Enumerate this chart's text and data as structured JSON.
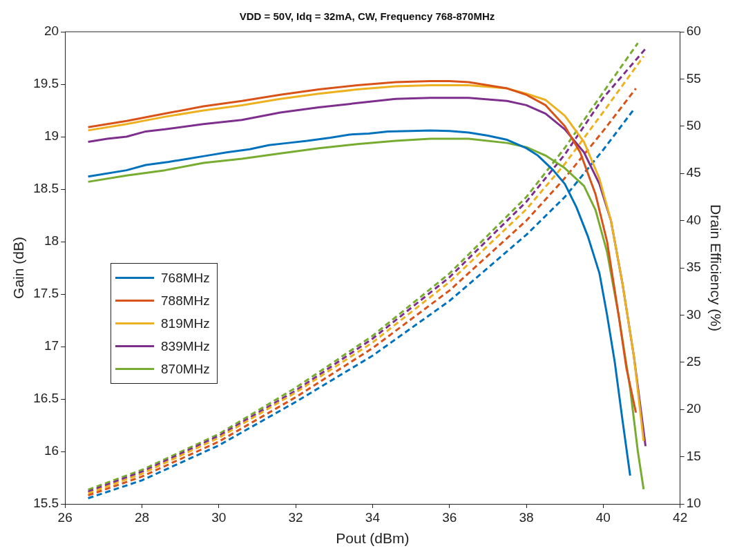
{
  "chart_data": {
    "type": "line",
    "title": "VDD = 50V, Idq = 32mA, CW, Frequency 768-870MHz",
    "xlabel": "Pout (dBm)",
    "ylabel": "Gain (dB)",
    "y2label": "Drain Efficiency (%)",
    "xlim": [
      26,
      42
    ],
    "xticks": [
      26,
      28,
      30,
      32,
      34,
      36,
      38,
      40,
      42
    ],
    "ylim": [
      15.5,
      20
    ],
    "yticks": [
      15.5,
      16,
      16.5,
      17,
      17.5,
      18,
      18.5,
      19,
      19.5,
      20
    ],
    "y2lim": [
      10,
      60
    ],
    "y2ticks": [
      10,
      15,
      20,
      25,
      30,
      35,
      40,
      45,
      50,
      55,
      60
    ],
    "legend": "left",
    "marker": "none",
    "series": [
      {
        "name": "768MHz",
        "color": "#0072bd",
        "line_style": "solid",
        "x": [
          26.6,
          27.6,
          28.1,
          28.7,
          29.2,
          29.7,
          30.2,
          30.8,
          31.3,
          31.8,
          32.3,
          32.9,
          33.4,
          33.9,
          34.4,
          35.0,
          35.5,
          36.0,
          36.5,
          37.0,
          37.5,
          38.0,
          38.3,
          38.7,
          39.0,
          39.3,
          39.6,
          39.9,
          40.1,
          40.3,
          40.5,
          40.7
        ],
        "values": [
          18.62,
          18.68,
          18.73,
          18.76,
          18.79,
          18.82,
          18.85,
          18.88,
          18.92,
          18.94,
          18.96,
          18.99,
          19.02,
          19.03,
          19.05,
          19.055,
          19.06,
          19.055,
          19.04,
          19.01,
          18.97,
          18.89,
          18.82,
          18.68,
          18.55,
          18.33,
          18.05,
          17.7,
          17.3,
          16.85,
          16.3,
          15.77
        ]
      },
      {
        "name": "788MHz",
        "color": "#d95319",
        "line_style": "solid",
        "x": [
          26.6,
          27.6,
          28.6,
          29.6,
          30.6,
          31.6,
          32.6,
          33.6,
          34.6,
          35.5,
          36.0,
          36.5,
          37.0,
          37.5,
          38.0,
          38.5,
          39.0,
          39.4,
          39.8,
          40.1,
          40.4,
          40.6,
          40.85
        ],
        "values": [
          19.09,
          19.15,
          19.22,
          19.29,
          19.34,
          19.4,
          19.45,
          19.49,
          19.52,
          19.53,
          19.53,
          19.52,
          19.49,
          19.46,
          19.4,
          19.3,
          19.1,
          18.85,
          18.45,
          18.0,
          17.3,
          16.8,
          16.37
        ]
      },
      {
        "name": "819MHz",
        "color": "#edb120",
        "line_style": "solid",
        "x": [
          26.6,
          27.6,
          28.6,
          29.6,
          30.6,
          31.6,
          32.6,
          33.6,
          34.6,
          35.5,
          36.5,
          37.5,
          38.0,
          38.5,
          39.0,
          39.5,
          39.9,
          40.2,
          40.5,
          40.8,
          41.05
        ],
        "values": [
          19.06,
          19.12,
          19.19,
          19.25,
          19.3,
          19.36,
          19.41,
          19.45,
          19.48,
          19.49,
          19.49,
          19.46,
          19.41,
          19.35,
          19.2,
          18.95,
          18.6,
          18.2,
          17.6,
          16.9,
          16.1
        ]
      },
      {
        "name": "839MHz",
        "color": "#7e2f8e",
        "line_style": "solid",
        "x": [
          26.6,
          27.1,
          27.6,
          28.1,
          28.6,
          29.6,
          30.6,
          31.6,
          32.6,
          33.6,
          34.6,
          35.5,
          36.5,
          37.5,
          38.0,
          38.5,
          39.0,
          39.5,
          39.9,
          40.2,
          40.5,
          40.8,
          41.1
        ],
        "values": [
          18.95,
          18.98,
          19.0,
          19.05,
          19.07,
          19.12,
          19.16,
          19.23,
          19.28,
          19.32,
          19.36,
          19.37,
          19.37,
          19.34,
          19.3,
          19.22,
          19.07,
          18.85,
          18.55,
          18.2,
          17.6,
          16.9,
          16.05
        ]
      },
      {
        "name": "870MHz",
        "color": "#77ac30",
        "line_style": "solid",
        "x": [
          26.6,
          27.6,
          28.6,
          29.6,
          30.6,
          31.6,
          32.6,
          33.6,
          34.6,
          35.5,
          36.5,
          37.5,
          38.0,
          38.5,
          39.0,
          39.5,
          39.8,
          40.1,
          40.4,
          40.7,
          40.9,
          41.05
        ],
        "values": [
          18.57,
          18.63,
          18.68,
          18.75,
          18.79,
          18.84,
          18.89,
          18.93,
          18.96,
          18.98,
          18.98,
          18.94,
          18.9,
          18.82,
          18.7,
          18.53,
          18.3,
          17.9,
          17.3,
          16.6,
          16.0,
          15.64
        ]
      },
      {
        "color": "#0072bd",
        "line_style": "dashed",
        "axis": "y2",
        "x": [
          26.6,
          28,
          30,
          32,
          34,
          36,
          38,
          39,
          40,
          40.8
        ],
        "values": [
          10.6,
          12.5,
          16.2,
          20.8,
          25.7,
          31.5,
          38.5,
          42.5,
          47.5,
          51.8
        ]
      },
      {
        "color": "#d95319",
        "line_style": "dashed",
        "axis": "y2",
        "x": [
          26.6,
          28,
          30,
          32,
          34,
          36,
          38,
          39,
          40,
          40.85
        ],
        "values": [
          10.9,
          12.9,
          16.6,
          21.3,
          26.5,
          32.6,
          40,
          44.5,
          49.5,
          54
        ]
      },
      {
        "color": "#edb120",
        "line_style": "dashed",
        "axis": "y2",
        "x": [
          26.6,
          28,
          30,
          32,
          34,
          36,
          38,
          39,
          40,
          41.05
        ],
        "values": [
          11.1,
          13.2,
          17,
          21.8,
          27.1,
          33.5,
          41.2,
          46,
          51.5,
          57.4
        ]
      },
      {
        "color": "#7e2f8e",
        "line_style": "dashed",
        "axis": "y2",
        "x": [
          26.6,
          28,
          30,
          32,
          34,
          36,
          38,
          39,
          40,
          41.1
        ],
        "values": [
          11.3,
          13.4,
          17.2,
          22,
          27.5,
          34,
          42,
          47,
          53,
          58.2
        ]
      },
      {
        "color": "#77ac30",
        "line_style": "dashed",
        "axis": "y2",
        "x": [
          26.6,
          28,
          30,
          32,
          34,
          36,
          38,
          39,
          40,
          40.9
        ],
        "values": [
          11.5,
          13.6,
          17.4,
          22.3,
          27.8,
          34.4,
          42.5,
          47.7,
          53.6,
          58.8
        ]
      }
    ]
  }
}
